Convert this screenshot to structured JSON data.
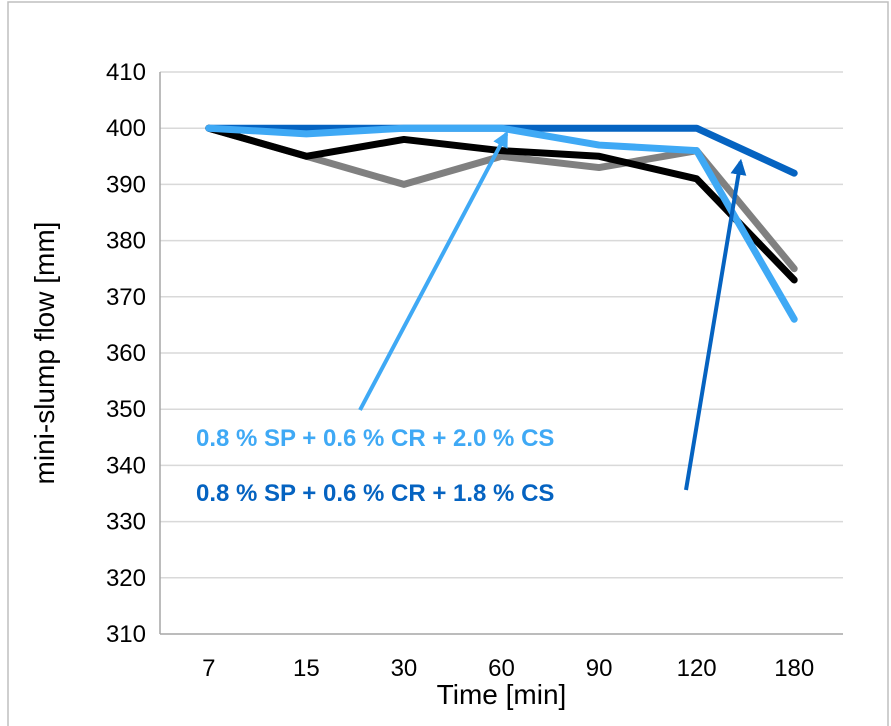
{
  "chart_data": {
    "type": "line",
    "categories": [
      "7",
      "15",
      "30",
      "60",
      "90",
      "120",
      "180"
    ],
    "xlabel": "Time [min]",
    "ylabel": "mini-slump flow [mm]",
    "ylim": [
      310,
      410
    ],
    "ytick_step": 10,
    "grid": true,
    "legend": "none",
    "series": [
      {
        "color": "#808080",
        "values": [
          400,
          395,
          390,
          395,
          393,
          396,
          375
        ]
      },
      {
        "color": "#000000",
        "values": [
          400,
          395,
          398,
          396,
          395,
          391,
          373
        ]
      },
      {
        "color": "#0563C1",
        "values": [
          400,
          400,
          400,
          400,
          400,
          400,
          392
        ]
      },
      {
        "color": "#3FA9F5",
        "values": [
          400,
          399,
          400,
          400,
          397,
          396,
          366
        ]
      }
    ],
    "annotations": [
      {
        "text": "0.8 % SP + 0.6 % CR + 2.0 % CS",
        "color": "#3FA9F5",
        "arrow_to": {
          "x": 3.05,
          "y": 399
        }
      },
      {
        "text": "0.8 % SP + 0.6 % CR + 1.8 % CS",
        "color": "#0563C1",
        "arrow_to": {
          "x": 5.45,
          "y": 394
        }
      }
    ]
  }
}
